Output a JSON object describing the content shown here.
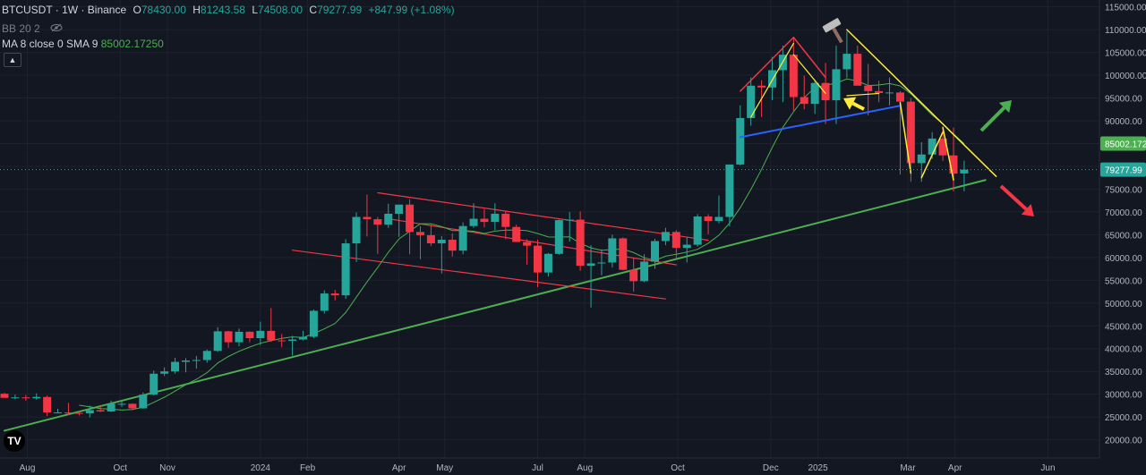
{
  "header": {
    "symbol": "BTCUSDT · 1W · Binance",
    "open_label": "O",
    "open": "78430.00",
    "high_label": "H",
    "high": "81243.58",
    "low_label": "L",
    "low": "74508.00",
    "close_label": "C",
    "close": "79277.99",
    "change": "+847.99 (+1.08%)",
    "bb_label": "BB 20 2",
    "ma_label": "MA 8 close 0 SMA 9",
    "ma_value": "85002.17250"
  },
  "colors": {
    "background": "#131722",
    "up": "#26a69a",
    "down": "#f23645",
    "ma": "#4caf50",
    "support": "#4caf50",
    "channel": "#f23645",
    "resistance": "#ffeb3b",
    "neckline": "#2962ff"
  },
  "icons": [
    "eye-off-icon",
    "hammer-icon",
    "tradingview-logo-icon",
    "chevron-up-icon"
  ],
  "chart_data": {
    "type": "candlestick",
    "xlim": [
      "2023-07-17",
      "2025-06-16"
    ],
    "ylim": [
      16000,
      116500
    ],
    "yticks": [
      115000,
      110000,
      105000,
      100000,
      95000,
      90000,
      85000,
      80000,
      75000,
      70000,
      65000,
      60000,
      55000,
      50000,
      45000,
      40000,
      35000,
      30000,
      25000,
      20000
    ],
    "ytick_labels": [
      "115000.00",
      "110000.00",
      "105000.00",
      "100000.00",
      "95000.00",
      "90000.00",
      "85000.00",
      "80000.00",
      "75000.00",
      "70000.00",
      "65000.00",
      "60000.00",
      "55000.00",
      "50000.00",
      "45000.00",
      "40000.00",
      "35000.00",
      "30000.00",
      "25000.00",
      "20000.00"
    ],
    "xticks": [
      {
        "date": "2023-08-01",
        "label": "Aug"
      },
      {
        "date": "2023-10-01",
        "label": "Oct"
      },
      {
        "date": "2023-11-01",
        "label": "Nov"
      },
      {
        "date": "2024-01-01",
        "label": "2024"
      },
      {
        "date": "2024-02-01",
        "label": "Feb"
      },
      {
        "date": "2024-04-01",
        "label": "Apr"
      },
      {
        "date": "2024-05-01",
        "label": "May"
      },
      {
        "date": "2024-07-01",
        "label": "Jul"
      },
      {
        "date": "2024-08-01",
        "label": "Aug"
      },
      {
        "date": "2024-10-01",
        "label": "Oct"
      },
      {
        "date": "2024-12-01",
        "label": "Dec"
      },
      {
        "date": "2025-01-01",
        "label": "2025"
      },
      {
        "date": "2025-03-01",
        "label": "Mar"
      },
      {
        "date": "2025-04-01",
        "label": "Apr"
      },
      {
        "date": "2025-06-01",
        "label": "Jun"
      }
    ],
    "price_labels": [
      {
        "value": 85002.172,
        "text": "85002.172",
        "role": "ma"
      },
      {
        "value": 79277.99,
        "text": "79277.99",
        "role": "last"
      }
    ],
    "candles": [
      {
        "t": "2023-07-17",
        "o": 30100,
        "h": 30300,
        "l": 29500,
        "c": 29200
      },
      {
        "t": "2023-07-24",
        "o": 29200,
        "h": 29900,
        "l": 28900,
        "c": 29300
      },
      {
        "t": "2023-07-31",
        "o": 29300,
        "h": 29800,
        "l": 28600,
        "c": 29100
      },
      {
        "t": "2023-08-07",
        "o": 29100,
        "h": 30200,
        "l": 28800,
        "c": 29400
      },
      {
        "t": "2023-08-14",
        "o": 29400,
        "h": 29700,
        "l": 25200,
        "c": 26000
      },
      {
        "t": "2023-08-21",
        "o": 26000,
        "h": 26800,
        "l": 25800,
        "c": 26000
      },
      {
        "t": "2023-08-28",
        "o": 26000,
        "h": 28100,
        "l": 25400,
        "c": 25900
      },
      {
        "t": "2023-09-04",
        "o": 25900,
        "h": 26300,
        "l": 25300,
        "c": 25800
      },
      {
        "t": "2023-09-11",
        "o": 25800,
        "h": 27500,
        "l": 24900,
        "c": 26500
      },
      {
        "t": "2023-09-18",
        "o": 26500,
        "h": 27400,
        "l": 26100,
        "c": 26200
      },
      {
        "t": "2023-09-25",
        "o": 26200,
        "h": 28600,
        "l": 26100,
        "c": 27900
      },
      {
        "t": "2023-10-02",
        "o": 27900,
        "h": 28600,
        "l": 27200,
        "c": 27900
      },
      {
        "t": "2023-10-09",
        "o": 27900,
        "h": 28000,
        "l": 26500,
        "c": 26900
      },
      {
        "t": "2023-10-16",
        "o": 26900,
        "h": 30400,
        "l": 26800,
        "c": 29900
      },
      {
        "t": "2023-10-23",
        "o": 29900,
        "h": 35200,
        "l": 29700,
        "c": 34500
      },
      {
        "t": "2023-10-30",
        "o": 34500,
        "h": 35900,
        "l": 34000,
        "c": 35000
      },
      {
        "t": "2023-11-06",
        "o": 35000,
        "h": 38000,
        "l": 34500,
        "c": 37100
      },
      {
        "t": "2023-11-13",
        "o": 37100,
        "h": 37900,
        "l": 34800,
        "c": 37400
      },
      {
        "t": "2023-11-20",
        "o": 37400,
        "h": 38400,
        "l": 35600,
        "c": 37500
      },
      {
        "t": "2023-11-27",
        "o": 37500,
        "h": 39800,
        "l": 36900,
        "c": 39500
      },
      {
        "t": "2023-12-04",
        "o": 39500,
        "h": 44700,
        "l": 39300,
        "c": 43800
      },
      {
        "t": "2023-12-11",
        "o": 43800,
        "h": 43900,
        "l": 40200,
        "c": 41400
      },
      {
        "t": "2023-12-18",
        "o": 41400,
        "h": 44400,
        "l": 40500,
        "c": 43700
      },
      {
        "t": "2023-12-25",
        "o": 43700,
        "h": 43800,
        "l": 41400,
        "c": 42300
      },
      {
        "t": "2024-01-01",
        "o": 42300,
        "h": 45900,
        "l": 40800,
        "c": 43900
      },
      {
        "t": "2024-01-08",
        "o": 43900,
        "h": 48900,
        "l": 41500,
        "c": 41800
      },
      {
        "t": "2024-01-15",
        "o": 41800,
        "h": 43200,
        "l": 40300,
        "c": 41700
      },
      {
        "t": "2024-01-22",
        "o": 41700,
        "h": 42800,
        "l": 38500,
        "c": 42000
      },
      {
        "t": "2024-01-29",
        "o": 42000,
        "h": 43900,
        "l": 41800,
        "c": 42600
      },
      {
        "t": "2024-02-05",
        "o": 42600,
        "h": 48600,
        "l": 42300,
        "c": 48300
      },
      {
        "t": "2024-02-12",
        "o": 48300,
        "h": 52800,
        "l": 47700,
        "c": 52100
      },
      {
        "t": "2024-02-19",
        "o": 52100,
        "h": 52900,
        "l": 50600,
        "c": 51700
      },
      {
        "t": "2024-02-26",
        "o": 51700,
        "h": 64000,
        "l": 50900,
        "c": 63100
      },
      {
        "t": "2024-03-04",
        "o": 63100,
        "h": 69900,
        "l": 59000,
        "c": 68900
      },
      {
        "t": "2024-03-11",
        "o": 68900,
        "h": 73800,
        "l": 64600,
        "c": 68400
      },
      {
        "t": "2024-03-18",
        "o": 68400,
        "h": 68900,
        "l": 60800,
        "c": 67200
      },
      {
        "t": "2024-03-25",
        "o": 67200,
        "h": 71800,
        "l": 66500,
        "c": 69600
      },
      {
        "t": "2024-04-01",
        "o": 69600,
        "h": 71400,
        "l": 64500,
        "c": 71600
      },
      {
        "t": "2024-04-08",
        "o": 71600,
        "h": 72800,
        "l": 60700,
        "c": 65600
      },
      {
        "t": "2024-04-15",
        "o": 65600,
        "h": 66900,
        "l": 59600,
        "c": 64900
      },
      {
        "t": "2024-04-22",
        "o": 64900,
        "h": 67200,
        "l": 62500,
        "c": 63100
      },
      {
        "t": "2024-04-29",
        "o": 63100,
        "h": 64700,
        "l": 56500,
        "c": 63900
      },
      {
        "t": "2024-05-06",
        "o": 63900,
        "h": 65300,
        "l": 60200,
        "c": 61500
      },
      {
        "t": "2024-05-13",
        "o": 61500,
        "h": 67700,
        "l": 60700,
        "c": 66900
      },
      {
        "t": "2024-05-20",
        "o": 66900,
        "h": 71900,
        "l": 66500,
        "c": 68500
      },
      {
        "t": "2024-05-27",
        "o": 68500,
        "h": 70600,
        "l": 66600,
        "c": 67800
      },
      {
        "t": "2024-06-03",
        "o": 67800,
        "h": 71900,
        "l": 66000,
        "c": 69600
      },
      {
        "t": "2024-06-10",
        "o": 69600,
        "h": 70100,
        "l": 64000,
        "c": 66700
      },
      {
        "t": "2024-06-17",
        "o": 66700,
        "h": 67200,
        "l": 63400,
        "c": 63400
      },
      {
        "t": "2024-06-24",
        "o": 63400,
        "h": 64000,
        "l": 58400,
        "c": 62600
      },
      {
        "t": "2024-07-01",
        "o": 62600,
        "h": 63900,
        "l": 53500,
        "c": 56700
      },
      {
        "t": "2024-07-08",
        "o": 56700,
        "h": 61000,
        "l": 55800,
        "c": 60800
      },
      {
        "t": "2024-07-15",
        "o": 60800,
        "h": 68300,
        "l": 60600,
        "c": 68200
      },
      {
        "t": "2024-07-22",
        "o": 68200,
        "h": 70000,
        "l": 63500,
        "c": 68300
      },
      {
        "t": "2024-07-29",
        "o": 68300,
        "h": 70100,
        "l": 57100,
        "c": 58200
      },
      {
        "t": "2024-08-05",
        "o": 58200,
        "h": 62700,
        "l": 49000,
        "c": 58700
      },
      {
        "t": "2024-08-12",
        "o": 58700,
        "h": 61800,
        "l": 56100,
        "c": 58900
      },
      {
        "t": "2024-08-19",
        "o": 58900,
        "h": 65000,
        "l": 57800,
        "c": 64200
      },
      {
        "t": "2024-08-26",
        "o": 64200,
        "h": 64400,
        "l": 57200,
        "c": 57300
      },
      {
        "t": "2024-09-02",
        "o": 57300,
        "h": 59800,
        "l": 52500,
        "c": 54800
      },
      {
        "t": "2024-09-09",
        "o": 54800,
        "h": 60700,
        "l": 54600,
        "c": 59100
      },
      {
        "t": "2024-09-16",
        "o": 59100,
        "h": 64100,
        "l": 57500,
        "c": 63600
      },
      {
        "t": "2024-09-23",
        "o": 63600,
        "h": 66500,
        "l": 62700,
        "c": 65600
      },
      {
        "t": "2024-09-30",
        "o": 65600,
        "h": 66000,
        "l": 59800,
        "c": 62100
      },
      {
        "t": "2024-10-07",
        "o": 62100,
        "h": 64500,
        "l": 58900,
        "c": 62800
      },
      {
        "t": "2024-10-14",
        "o": 62800,
        "h": 69500,
        "l": 62400,
        "c": 69000
      },
      {
        "t": "2024-10-21",
        "o": 69000,
        "h": 69500,
        "l": 65100,
        "c": 68000
      },
      {
        "t": "2024-10-28",
        "o": 68000,
        "h": 73600,
        "l": 67500,
        "c": 68900
      },
      {
        "t": "2024-11-04",
        "o": 68900,
        "h": 80400,
        "l": 66800,
        "c": 80400
      },
      {
        "t": "2024-11-11",
        "o": 80400,
        "h": 93400,
        "l": 80200,
        "c": 90600
      },
      {
        "t": "2024-11-18",
        "o": 90600,
        "h": 99500,
        "l": 88900,
        "c": 97700
      },
      {
        "t": "2024-11-25",
        "o": 97700,
        "h": 98900,
        "l": 90800,
        "c": 97300
      },
      {
        "t": "2024-12-02",
        "o": 97300,
        "h": 104000,
        "l": 94500,
        "c": 101100
      },
      {
        "t": "2024-12-09",
        "o": 101100,
        "h": 106500,
        "l": 94100,
        "c": 104500
      },
      {
        "t": "2024-12-16",
        "o": 104500,
        "h": 108300,
        "l": 92200,
        "c": 95200
      },
      {
        "t": "2024-12-23",
        "o": 95200,
        "h": 99900,
        "l": 92500,
        "c": 93700
      },
      {
        "t": "2024-12-30",
        "o": 93700,
        "h": 99000,
        "l": 91500,
        "c": 98300
      },
      {
        "t": "2025-01-06",
        "o": 98300,
        "h": 102700,
        "l": 89300,
        "c": 94500
      },
      {
        "t": "2025-01-13",
        "o": 94500,
        "h": 106500,
        "l": 89300,
        "c": 101300
      },
      {
        "t": "2025-01-20",
        "o": 101300,
        "h": 109600,
        "l": 99400,
        "c": 104700
      },
      {
        "t": "2025-01-27",
        "o": 104700,
        "h": 106500,
        "l": 97800,
        "c": 97700
      },
      {
        "t": "2025-02-03",
        "o": 97700,
        "h": 102500,
        "l": 91200,
        "c": 96500
      },
      {
        "t": "2025-02-10",
        "o": 96500,
        "h": 98800,
        "l": 94100,
        "c": 96100
      },
      {
        "t": "2025-02-17",
        "o": 96100,
        "h": 99500,
        "l": 93400,
        "c": 96200
      },
      {
        "t": "2025-02-24",
        "o": 96200,
        "h": 96500,
        "l": 78200,
        "c": 94200
      },
      {
        "t": "2025-03-03",
        "o": 94200,
        "h": 95000,
        "l": 76600,
        "c": 80700
      },
      {
        "t": "2025-03-10",
        "o": 80700,
        "h": 85300,
        "l": 76600,
        "c": 82600
      },
      {
        "t": "2025-03-17",
        "o": 82600,
        "h": 87500,
        "l": 81600,
        "c": 86100
      },
      {
        "t": "2025-03-24",
        "o": 86100,
        "h": 88800,
        "l": 81200,
        "c": 82400
      },
      {
        "t": "2025-03-31",
        "o": 82400,
        "h": 88500,
        "l": 74500,
        "c": 78400
      },
      {
        "t": "2025-04-07",
        "o": 78430,
        "h": 81244,
        "l": 74508,
        "c": 79278
      }
    ]
  }
}
